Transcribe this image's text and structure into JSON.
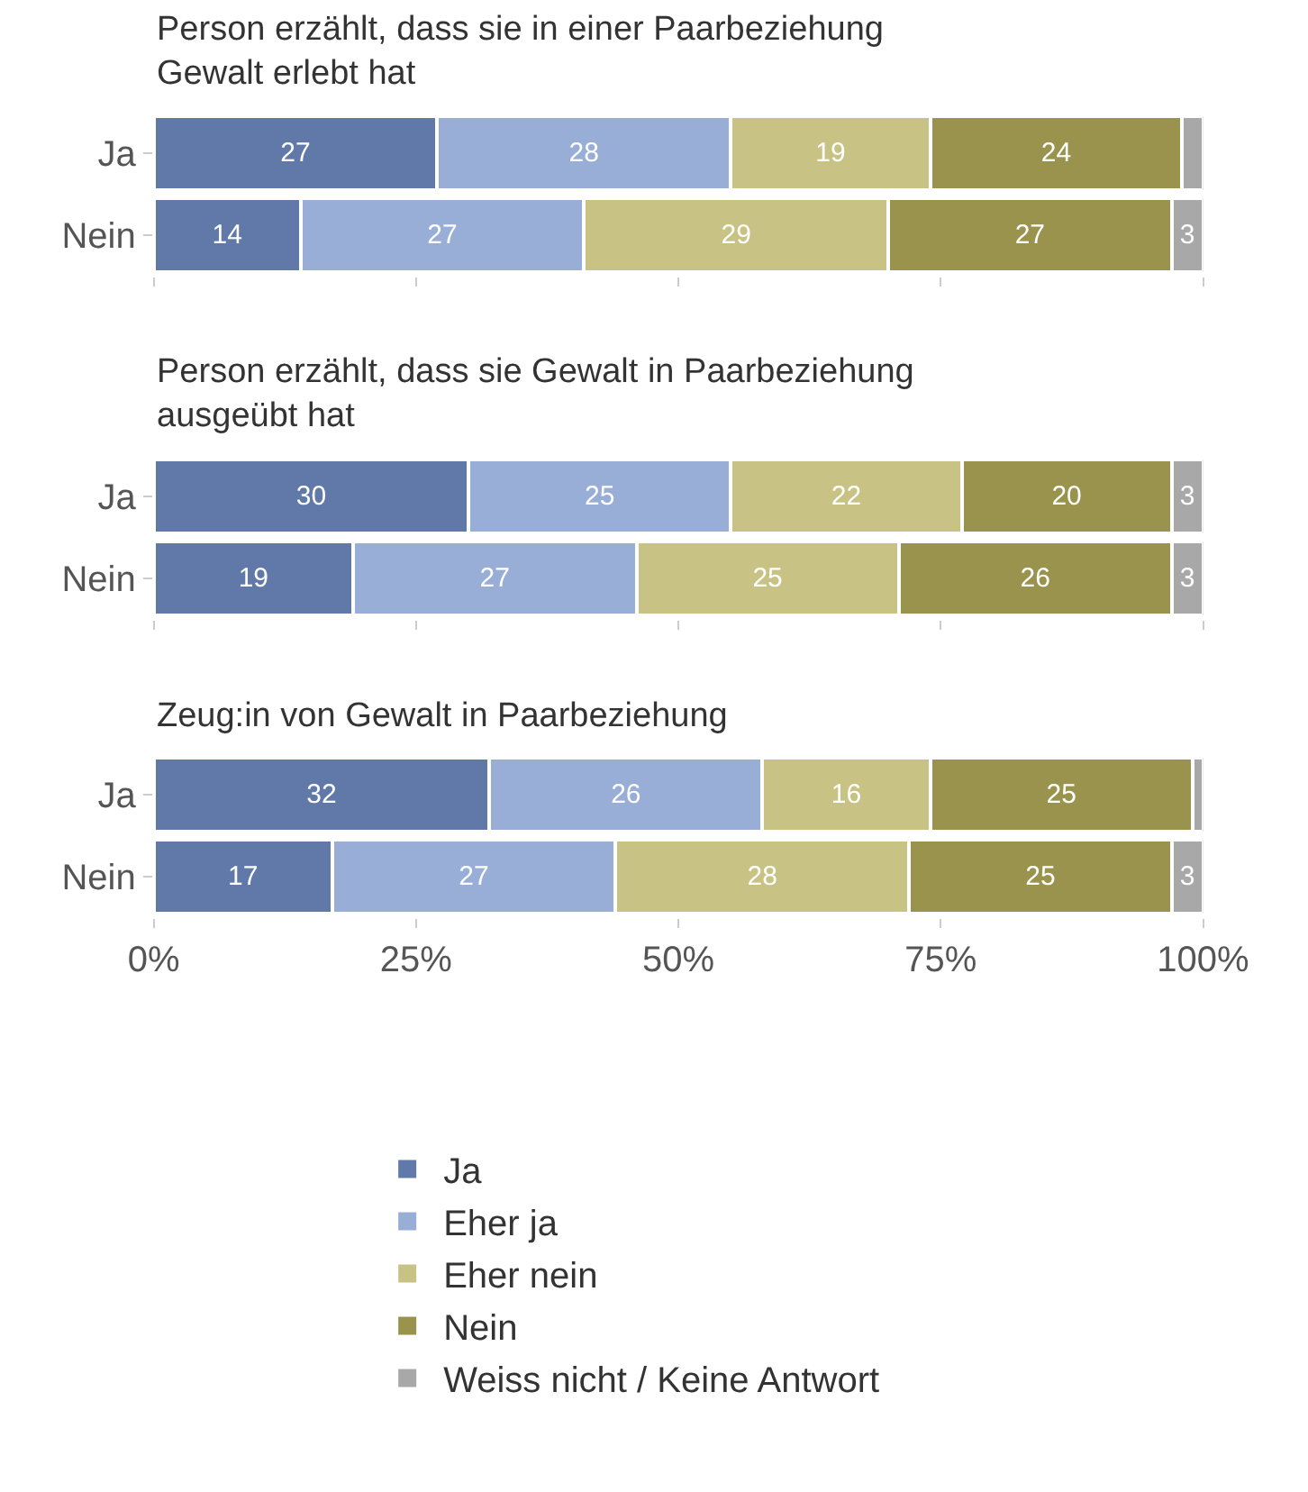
{
  "chart_data": [
    {
      "type": "bar",
      "orientation": "horizontal",
      "stacked": true,
      "title": "Person erzählt, dass sie in einer Paarbeziehung\nGewalt erlebt hat",
      "categories": [
        "Ja",
        "Nein"
      ],
      "xlim": [
        0,
        100
      ],
      "xticks": [
        {
          "value": 0,
          "label": null
        },
        {
          "value": 25,
          "label": null
        },
        {
          "value": 50,
          "label": null
        },
        {
          "value": 75,
          "label": null
        },
        {
          "value": 100,
          "label": null
        }
      ],
      "tick_labels": "y",
      "legend": "bottom",
      "series": [
        {
          "name": "Ja",
          "color": "#6079a8",
          "values": [
            27,
            14
          ],
          "value_labels": [
            "27",
            "14"
          ]
        },
        {
          "name": "Eher ja",
          "color": "#98aed6",
          "values": [
            28,
            27
          ],
          "value_labels": [
            "28",
            "27"
          ]
        },
        {
          "name": "Eher nein",
          "color": "#c8c385",
          "values": [
            19,
            29
          ],
          "value_labels": [
            "19",
            "29"
          ]
        },
        {
          "name": "Nein",
          "color": "#9a934e",
          "values": [
            24,
            27
          ],
          "value_labels": [
            "24",
            "27"
          ]
        },
        {
          "name": "Weiss nicht / Keine Antwort",
          "color": "#a8a8a8",
          "values": [
            2,
            3
          ],
          "value_labels": [
            null,
            "3"
          ]
        }
      ]
    },
    {
      "type": "bar",
      "orientation": "horizontal",
      "stacked": true,
      "title": "Person erzählt, dass sie Gewalt in Paarbeziehung\nausgeübt hat",
      "categories": [
        "Ja",
        "Nein"
      ],
      "xlim": [
        0,
        100
      ],
      "xticks": [
        {
          "value": 0,
          "label": null
        },
        {
          "value": 25,
          "label": null
        },
        {
          "value": 50,
          "label": null
        },
        {
          "value": 75,
          "label": null
        },
        {
          "value": 100,
          "label": null
        }
      ],
      "tick_labels": "y",
      "series": [
        {
          "color": "#6079a8",
          "values": [
            30,
            19
          ],
          "value_labels": [
            "30",
            "19"
          ]
        },
        {
          "color": "#98aed6",
          "values": [
            25,
            27
          ],
          "value_labels": [
            "25",
            "27"
          ]
        },
        {
          "color": "#c8c385",
          "values": [
            22,
            25
          ],
          "value_labels": [
            "22",
            "25"
          ]
        },
        {
          "color": "#9a934e",
          "values": [
            20,
            26
          ],
          "value_labels": [
            "20",
            "26"
          ]
        },
        {
          "color": "#a8a8a8",
          "values": [
            3,
            3
          ],
          "value_labels": [
            "3",
            "3"
          ]
        }
      ]
    },
    {
      "type": "bar",
      "orientation": "horizontal",
      "stacked": true,
      "title": "Zeug:in von Gewalt in Paarbeziehung",
      "categories": [
        "Ja",
        "Nein"
      ],
      "xlim": [
        0,
        100
      ],
      "xticks": [
        {
          "value": 0,
          "label": "0%"
        },
        {
          "value": 25,
          "label": "25%"
        },
        {
          "value": 50,
          "label": "50%"
        },
        {
          "value": 75,
          "label": "75%"
        },
        {
          "value": 100,
          "label": "100%"
        }
      ],
      "series": [
        {
          "color": "#6079a8",
          "values": [
            32,
            17
          ],
          "value_labels": [
            "32",
            "17"
          ]
        },
        {
          "color": "#98aed6",
          "values": [
            26,
            27
          ],
          "value_labels": [
            "26",
            "27"
          ]
        },
        {
          "color": "#c8c385",
          "values": [
            16,
            28
          ],
          "value_labels": [
            "16",
            "28"
          ]
        },
        {
          "color": "#9a934e",
          "values": [
            25,
            25
          ],
          "value_labels": [
            "25",
            "25"
          ]
        },
        {
          "color": "#a8a8a8",
          "values": [
            1,
            3
          ],
          "value_labels": [
            null,
            "3"
          ]
        }
      ]
    }
  ]
}
